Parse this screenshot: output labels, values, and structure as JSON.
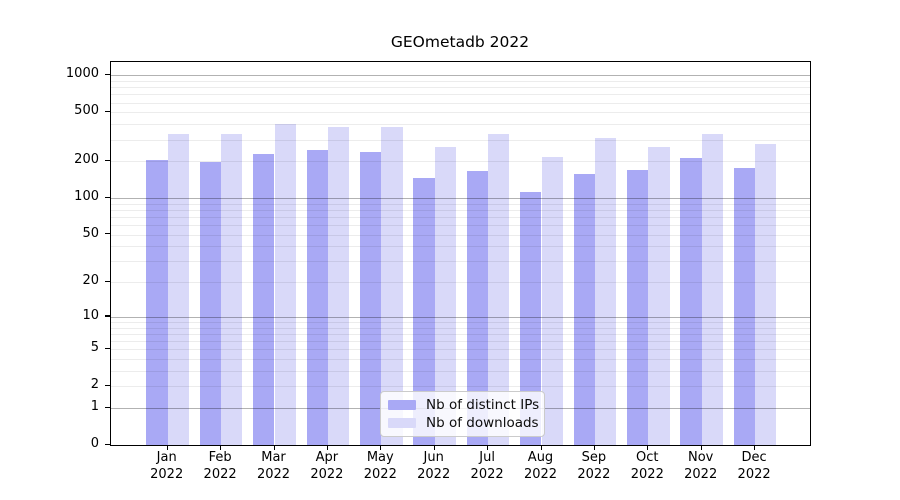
{
  "title": "GEOmetadb 2022",
  "chart_data": {
    "type": "bar",
    "title": "GEOmetadb 2022",
    "y_scale": "log1p",
    "grid": "on",
    "legend_position": "lower-center-inside",
    "categories": [
      "Jan 2022",
      "Feb 2022",
      "Mar 2022",
      "Apr 2022",
      "May 2022",
      "Jun 2022",
      "Jul 2022",
      "Aug 2022",
      "Sep 2022",
      "Oct 2022",
      "Nov 2022",
      "Dec 2022"
    ],
    "series": [
      {
        "name": "Nb of distinct IPs",
        "color": "#a9a9f5",
        "values": [
          205,
          197,
          229,
          246,
          238,
          145,
          166,
          112,
          157,
          169,
          212,
          175
        ]
      },
      {
        "name": "Nb of downloads",
        "color": "#d9d9f9",
        "values": [
          335,
          336,
          402,
          380,
          378,
          261,
          332,
          216,
          310,
          260,
          331,
          274
        ]
      }
    ],
    "y_ticks": [
      0,
      1,
      2,
      5,
      10,
      20,
      50,
      100,
      200,
      500,
      1000
    ],
    "ylim": [
      0,
      1283
    ],
    "xlabel": "",
    "ylabel": ""
  },
  "colors": {
    "bar_distinct_ips": "#a9a9f5",
    "bar_downloads": "#d9d9f9",
    "grid_major": "#b3b3b3",
    "grid_minor": "#ebebeb",
    "spine": "#000000",
    "legend_border": "#cbcbcb"
  }
}
